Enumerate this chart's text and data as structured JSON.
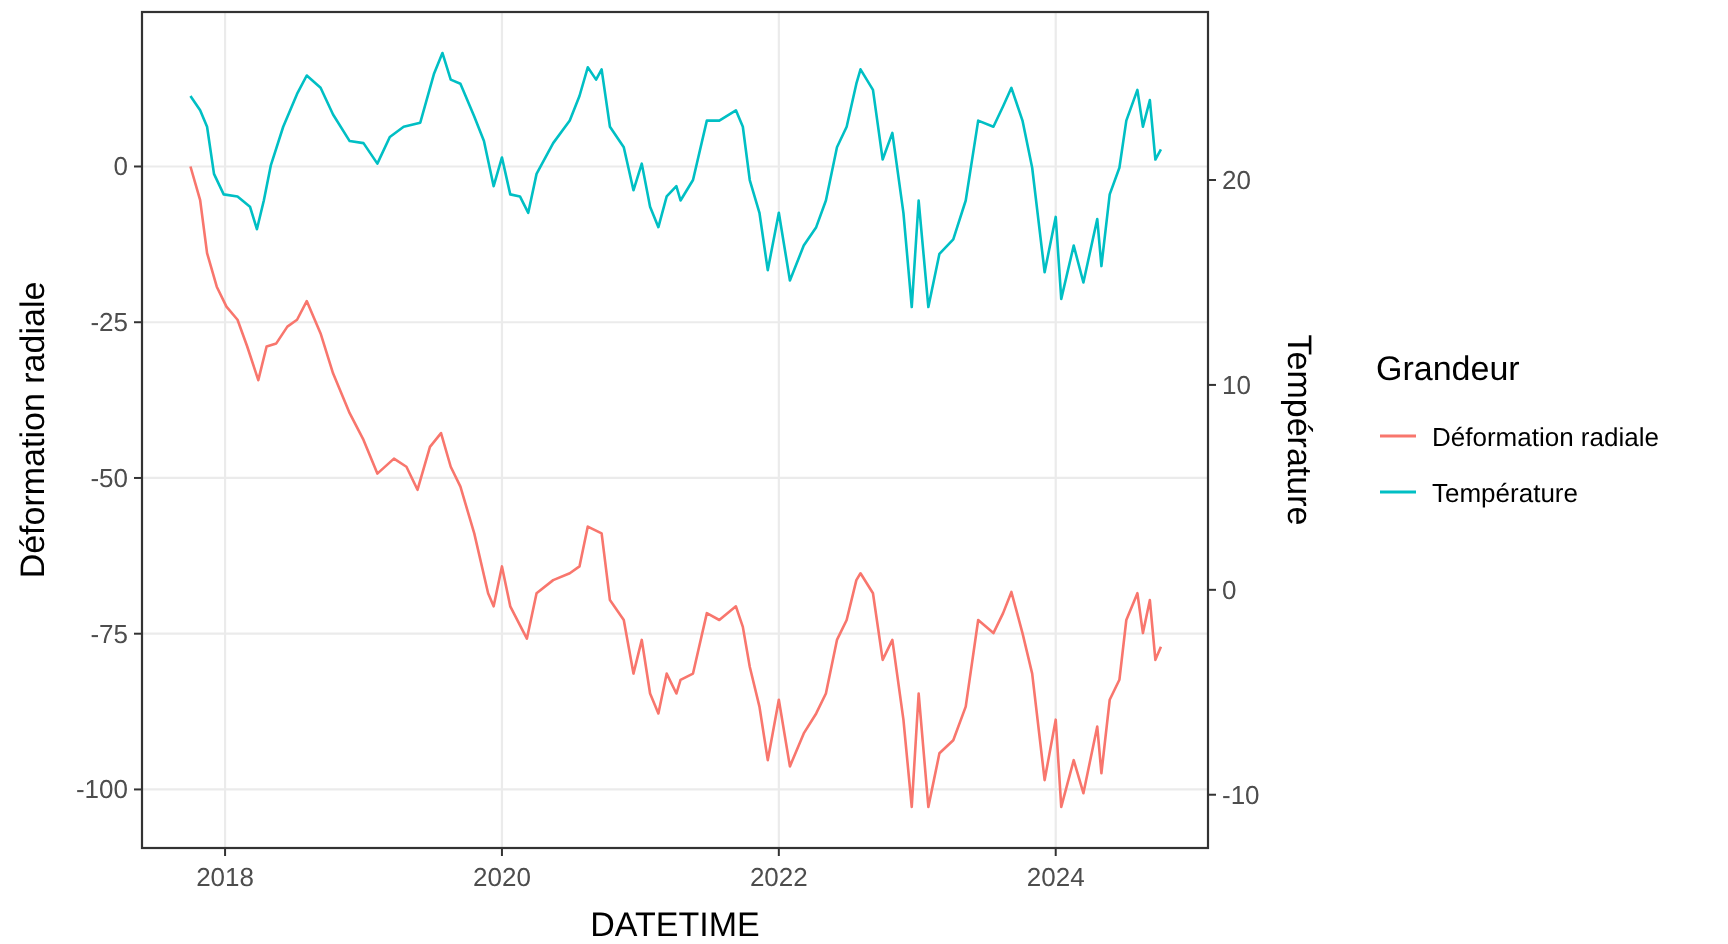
{
  "chart_data": {
    "type": "line",
    "xlabel": "DATETIME",
    "ylabel": "Déformation radiale",
    "y2label": "Température",
    "legend_title": "Grandeur",
    "xlim": [
      2017.4,
      2025.1
    ],
    "xticks": [
      2018,
      2020,
      2022,
      2024
    ],
    "ylim": [
      -109.4,
      24.8
    ],
    "yticks": [
      -100,
      -75,
      -50,
      -25,
      0
    ],
    "y2lim": [
      -12.6,
      28.2
    ],
    "y2ticks": [
      -10,
      0,
      10,
      20
    ],
    "grid": true,
    "legend": "right",
    "line_style": "solid",
    "series": [
      {
        "name": "Déformation radiale",
        "color": "#f8766d",
        "x": [
          2017.75,
          2017.82,
          2017.87,
          2017.94,
          2018.01,
          2018.09,
          2018.16,
          2018.24,
          2018.3,
          2018.37,
          2018.45,
          2018.52,
          2018.59,
          2018.69,
          2018.78,
          2018.9,
          2019.0,
          2019.1,
          2019.22,
          2019.31,
          2019.39,
          2019.48,
          2019.56,
          2019.63,
          2019.7,
          2019.8,
          2019.9,
          2019.94,
          2020.0,
          2020.06,
          2020.18,
          2020.25,
          2020.37,
          2020.49,
          2020.56,
          2020.62,
          2020.72,
          2020.78,
          2020.88,
          2020.95,
          2021.01,
          2021.07,
          2021.13,
          2021.19,
          2021.26,
          2021.29,
          2021.38,
          2021.48,
          2021.57,
          2021.69,
          2021.74,
          2021.79,
          2021.86,
          2021.92,
          2022.0,
          2022.08,
          2022.18,
          2022.27,
          2022.34,
          2022.42,
          2022.49,
          2022.56,
          2022.59,
          2022.68,
          2022.75,
          2022.82,
          2022.9,
          2022.96,
          2023.01,
          2023.08,
          2023.16,
          2023.26,
          2023.35,
          2023.44,
          2023.55,
          2023.62,
          2023.68,
          2023.76,
          2023.83,
          2023.92,
          2024.0,
          2024.04,
          2024.13,
          2024.2,
          2024.3,
          2024.33,
          2024.39,
          2024.46,
          2024.51,
          2024.59,
          2024.63,
          2024.68,
          2024.72,
          2024.76
        ],
        "values": [
          0,
          -5.4,
          -13.9,
          -19.3,
          -22.5,
          -24.6,
          -28.9,
          -34.3,
          -28.9,
          -28.4,
          -25.7,
          -24.6,
          -21.6,
          -26.8,
          -33.2,
          -39.6,
          -43.9,
          -49.3,
          -46.9,
          -48.2,
          -51.9,
          -45.0,
          -42.8,
          -48.2,
          -51.4,
          -58.9,
          -68.5,
          -70.6,
          -64.2,
          -70.6,
          -75.8,
          -68.5,
          -66.4,
          -65.3,
          -64.2,
          -57.8,
          -58.9,
          -69.6,
          -72.8,
          -81.4,
          -76.0,
          -84.6,
          -87.8,
          -81.4,
          -84.6,
          -82.4,
          -81.4,
          -71.7,
          -72.8,
          -70.6,
          -73.9,
          -80.3,
          -86.7,
          -95.3,
          -85.6,
          -96.3,
          -91.0,
          -87.8,
          -84.6,
          -76.0,
          -72.8,
          -66.4,
          -65.3,
          -68.5,
          -79.2,
          -76.0,
          -88.8,
          -102.8,
          -84.6,
          -102.8,
          -94.2,
          -92.1,
          -86.7,
          -72.8,
          -74.9,
          -71.7,
          -68.3,
          -74.9,
          -81.4,
          -98.5,
          -88.8,
          -102.8,
          -95.3,
          -100.6,
          -89.9,
          -97.4,
          -85.6,
          -82.4,
          -72.8,
          -68.5,
          -74.9,
          -69.6,
          -79.2,
          -77.1
        ]
      },
      {
        "name": "Température",
        "color": "#00bfc4",
        "axis": "y2",
        "x": [
          2017.75,
          2017.82,
          2017.87,
          2017.92,
          2017.99,
          2018.09,
          2018.18,
          2018.23,
          2018.28,
          2018.33,
          2018.42,
          2018.52,
          2018.59,
          2018.69,
          2018.78,
          2018.9,
          2019.0,
          2019.1,
          2019.19,
          2019.29,
          2019.41,
          2019.51,
          2019.57,
          2019.63,
          2019.7,
          2019.8,
          2019.87,
          2019.94,
          2020.0,
          2020.06,
          2020.13,
          2020.19,
          2020.25,
          2020.37,
          2020.49,
          2020.56,
          2020.62,
          2020.68,
          2020.72,
          2020.78,
          2020.88,
          2020.95,
          2021.01,
          2021.07,
          2021.13,
          2021.19,
          2021.26,
          2021.29,
          2021.38,
          2021.48,
          2021.57,
          2021.69,
          2021.74,
          2021.79,
          2021.86,
          2021.92,
          2022.0,
          2022.08,
          2022.18,
          2022.27,
          2022.34,
          2022.42,
          2022.49,
          2022.56,
          2022.59,
          2022.68,
          2022.75,
          2022.82,
          2022.9,
          2022.96,
          2023.01,
          2023.08,
          2023.16,
          2023.26,
          2023.35,
          2023.44,
          2023.55,
          2023.62,
          2023.68,
          2023.76,
          2023.83,
          2023.92,
          2024.0,
          2024.04,
          2024.13,
          2024.2,
          2024.3,
          2024.33,
          2024.39,
          2024.46,
          2024.51,
          2024.59,
          2024.63,
          2024.68,
          2024.72,
          2024.76
        ],
        "values": [
          24.1,
          23.4,
          22.6,
          20.3,
          19.3,
          19.2,
          18.7,
          17.6,
          19.0,
          20.7,
          22.6,
          24.2,
          25.1,
          24.5,
          23.2,
          21.9,
          21.8,
          20.8,
          22.1,
          22.6,
          22.8,
          25.2,
          26.2,
          24.9,
          24.7,
          23.1,
          21.9,
          19.7,
          21.1,
          19.3,
          19.2,
          18.4,
          20.3,
          21.8,
          22.9,
          24.1,
          25.5,
          24.9,
          25.4,
          22.6,
          21.6,
          19.5,
          20.8,
          18.7,
          17.7,
          19.2,
          19.7,
          19.0,
          20.0,
          22.9,
          22.9,
          23.4,
          22.6,
          20.0,
          18.4,
          15.6,
          18.4,
          15.1,
          16.8,
          17.7,
          19.0,
          21.6,
          22.6,
          24.7,
          25.4,
          24.4,
          21.0,
          22.3,
          18.4,
          13.8,
          19.0,
          13.8,
          16.4,
          17.1,
          19.0,
          22.9,
          22.6,
          23.6,
          24.5,
          22.9,
          20.6,
          15.5,
          18.2,
          14.2,
          16.8,
          15.0,
          18.1,
          15.8,
          19.3,
          20.6,
          22.9,
          24.4,
          22.6,
          23.9,
          21.0,
          21.5
        ]
      }
    ]
  }
}
